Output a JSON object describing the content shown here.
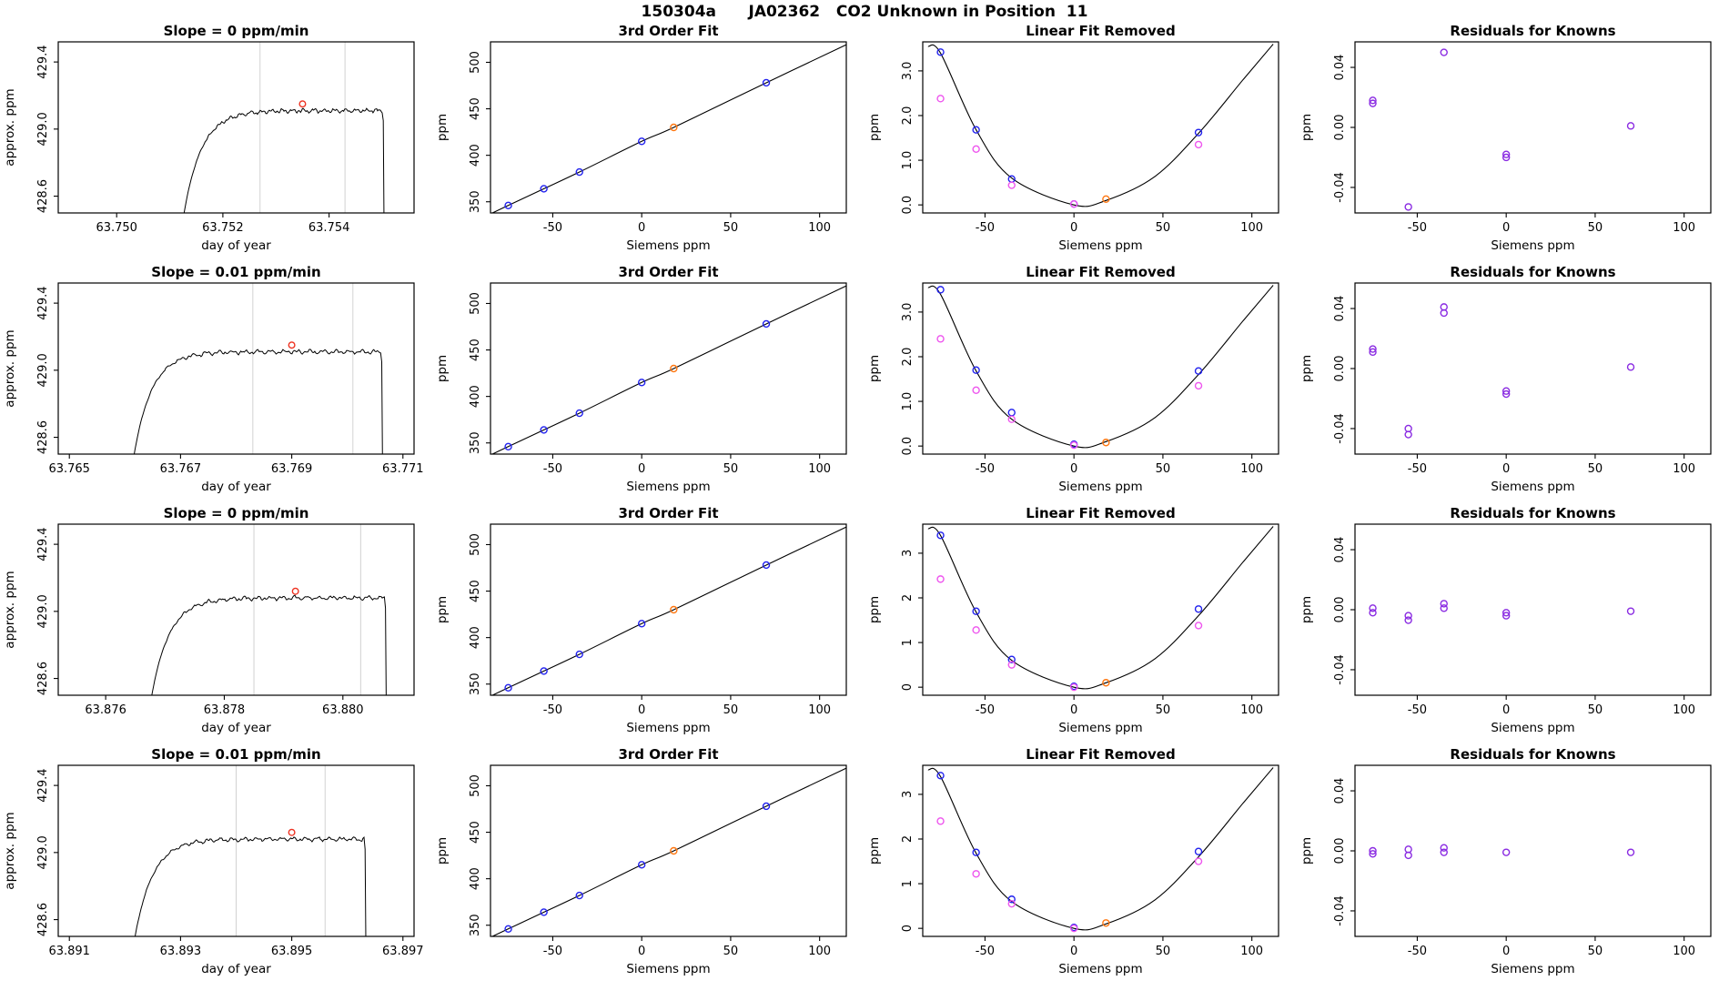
{
  "title": "150304a      JA02362   CO2 Unknown in Position  11",
  "colors": {
    "curve": "#000000",
    "blue": "#2222ee",
    "magenta": "#ee55ee",
    "purple": "#8a2be2",
    "orange": "#ff7711",
    "red_marker": "#ee3322",
    "vline": "#d2d2d2",
    "axis": "#000000"
  },
  "chart_data": {
    "type": "line",
    "layout": {
      "rows": 4,
      "cols": 4,
      "grid": "off",
      "legend": "none"
    },
    "shared": {
      "timeseries": {
        "xlabel": "day of year",
        "ylabel": "approx. ppm",
        "ylim": [
          428.5,
          429.52
        ],
        "yticks": [
          428.6,
          429.0,
          429.4
        ],
        "ytick_labels": [
          "428.6",
          "429.0",
          "429.4"
        ]
      },
      "fit": {
        "title": "3rd Order Fit",
        "xlabel": "Siemens ppm",
        "ylabel": "ppm",
        "xlim": [
          -85,
          115
        ],
        "xticks": [
          -50,
          0,
          50,
          100
        ],
        "xtick_labels": [
          "-50",
          "0",
          "50",
          "100"
        ],
        "ylim": [
          338,
          522
        ],
        "yticks": [
          350,
          400,
          450,
          500
        ],
        "ytick_labels": [
          "350",
          "400",
          "450",
          "500"
        ],
        "blue_points": [
          [
            -75,
            346
          ],
          [
            -55,
            364
          ],
          [
            -35,
            382
          ],
          [
            0,
            415
          ],
          [
            70,
            478
          ]
        ],
        "orange_point": [
          18,
          430
        ],
        "curve": [
          [
            -85,
            337
          ],
          [
            -75,
            346
          ],
          [
            -55,
            364
          ],
          [
            -35,
            382
          ],
          [
            0,
            415
          ],
          [
            18,
            430
          ],
          [
            70,
            478
          ],
          [
            115,
            519
          ]
        ]
      },
      "linres": {
        "title": "Linear Fit Removed",
        "xlabel": "Siemens ppm",
        "ylabel": "ppm",
        "xlim": [
          -85,
          115
        ],
        "xticks": [
          -50,
          0,
          50,
          100
        ],
        "xtick_labels": [
          "-50",
          "0",
          "50",
          "100"
        ],
        "ylim": [
          -0.18,
          3.65
        ],
        "curve": [
          [
            -82,
            3.55
          ],
          [
            -75,
            3.4
          ],
          [
            -55,
            1.68
          ],
          [
            -35,
            0.6
          ],
          [
            0,
            0.0
          ],
          [
            18,
            0.1
          ],
          [
            45,
            0.62
          ],
          [
            70,
            1.6
          ],
          [
            95,
            2.8
          ],
          [
            112,
            3.6
          ]
        ]
      },
      "residuals": {
        "title": "Residuals for Knowns",
        "xlabel": "Siemens ppm",
        "ylabel": "ppm",
        "xlim": [
          -85,
          115
        ],
        "xticks": [
          -50,
          0,
          50,
          100
        ],
        "xtick_labels": [
          "-50",
          "0",
          "50",
          "100"
        ],
        "ylim": [
          -0.057,
          0.057
        ],
        "yticks": [
          -0.04,
          0.0,
          0.04
        ],
        "ytick_labels": [
          "-0.04",
          "0.00",
          "0.04"
        ]
      }
    },
    "rows": [
      {
        "slope_title": "Slope =  0  ppm/min",
        "timeseries": {
          "xlim": [
            63.7489,
            63.7556
          ],
          "xticks": [
            63.75,
            63.752,
            63.754
          ],
          "xtick_labels": [
            "63.750",
            "63.752",
            "63.754"
          ],
          "rise_x": 63.7512,
          "drop_x": 63.755,
          "plateau": 429.11,
          "vlines": [
            63.7527,
            63.7543
          ],
          "marker": [
            63.7535,
            429.15
          ]
        },
        "linres": {
          "yticks": [
            0,
            1,
            2,
            3
          ],
          "ytick_labels": [
            "0.0",
            "1.0",
            "2.0",
            "3.0"
          ],
          "blue_points": [
            [
              -75,
              3.42
            ],
            [
              -55,
              1.68
            ],
            [
              -35,
              0.58
            ],
            [
              0,
              0.02
            ],
            [
              70,
              1.62
            ]
          ],
          "magenta_points": [
            [
              -75,
              2.38
            ],
            [
              -55,
              1.25
            ],
            [
              -35,
              0.44
            ],
            [
              0,
              0.02
            ],
            [
              70,
              1.35
            ]
          ],
          "orange_point": [
            18,
            0.13
          ]
        },
        "residuals": {
          "points": [
            [
              -75,
              0.018
            ],
            [
              -75,
              0.016
            ],
            [
              -35,
              0.05
            ],
            [
              -55,
              -0.053
            ],
            [
              0,
              -0.018
            ],
            [
              0,
              -0.02
            ],
            [
              70,
              0.001
            ]
          ]
        }
      },
      {
        "slope_title": "Slope =  0.01  ppm/min",
        "timeseries": {
          "xlim": [
            63.7648,
            63.7712
          ],
          "xticks": [
            63.765,
            63.767,
            63.769,
            63.771
          ],
          "xtick_labels": [
            "63.765",
            "63.767",
            "63.769",
            "63.771"
          ],
          "rise_x": 63.7661,
          "drop_x": 63.7706,
          "plateau": 429.11,
          "vlines": [
            63.7683,
            63.7701
          ],
          "marker": [
            63.769,
            429.15
          ]
        },
        "linres": {
          "yticks": [
            0,
            1,
            2,
            3
          ],
          "ytick_labels": [
            "0.0",
            "1.0",
            "2.0",
            "3.0"
          ],
          "blue_points": [
            [
              -75,
              3.5
            ],
            [
              -55,
              1.7
            ],
            [
              -35,
              0.75
            ],
            [
              0,
              0.04
            ],
            [
              70,
              1.68
            ]
          ],
          "magenta_points": [
            [
              -75,
              2.4
            ],
            [
              -55,
              1.25
            ],
            [
              -35,
              0.6
            ],
            [
              0,
              0.02
            ],
            [
              70,
              1.35
            ]
          ],
          "orange_point": [
            18,
            0.08
          ]
        },
        "residuals": {
          "points": [
            [
              -75,
              0.013
            ],
            [
              -75,
              0.011
            ],
            [
              -35,
              0.041
            ],
            [
              -35,
              0.037
            ],
            [
              -55,
              -0.04
            ],
            [
              -55,
              -0.044
            ],
            [
              0,
              -0.015
            ],
            [
              0,
              -0.017
            ],
            [
              70,
              0.001
            ]
          ]
        }
      },
      {
        "slope_title": "Slope =  0  ppm/min",
        "timeseries": {
          "xlim": [
            63.8752,
            63.8812
          ],
          "xticks": [
            63.876,
            63.878,
            63.88
          ],
          "xtick_labels": [
            "63.876",
            "63.878",
            "63.880"
          ],
          "rise_x": 63.8767,
          "drop_x": 63.8807,
          "plateau": 429.08,
          "vlines": [
            63.8785,
            63.8803
          ],
          "marker": [
            63.8792,
            429.12
          ]
        },
        "linres": {
          "yticks": [
            0,
            1,
            2,
            3
          ],
          "ytick_labels": [
            "0",
            "1",
            "2",
            "3"
          ],
          "blue_points": [
            [
              -75,
              3.4
            ],
            [
              -55,
              1.7
            ],
            [
              -35,
              0.62
            ],
            [
              0,
              0.02
            ],
            [
              70,
              1.75
            ]
          ],
          "magenta_points": [
            [
              -75,
              2.42
            ],
            [
              -55,
              1.28
            ],
            [
              -35,
              0.5
            ],
            [
              0,
              0.0
            ],
            [
              70,
              1.38
            ]
          ],
          "orange_point": [
            18,
            0.1
          ]
        },
        "residuals": {
          "points": [
            [
              -75,
              0.001
            ],
            [
              -75,
              -0.002
            ],
            [
              -55,
              -0.004
            ],
            [
              -55,
              -0.007
            ],
            [
              -35,
              0.004
            ],
            [
              -35,
              0.001
            ],
            [
              0,
              -0.002
            ],
            [
              0,
              -0.004
            ],
            [
              70,
              -0.001
            ]
          ]
        }
      },
      {
        "slope_title": "Slope =  0.01  ppm/min",
        "timeseries": {
          "xlim": [
            63.8908,
            63.8972
          ],
          "xticks": [
            63.891,
            63.893,
            63.895,
            63.897
          ],
          "xtick_labels": [
            "63.891",
            "63.893",
            "63.895",
            "63.897"
          ],
          "rise_x": 63.8921,
          "drop_x": 63.8963,
          "plateau": 429.08,
          "vlines": [
            63.894,
            63.8956
          ],
          "marker": [
            63.895,
            429.12
          ]
        },
        "linres": {
          "yticks": [
            0,
            1,
            2,
            3
          ],
          "ytick_labels": [
            "0",
            "1",
            "2",
            "3"
          ],
          "blue_points": [
            [
              -75,
              3.42
            ],
            [
              -55,
              1.7
            ],
            [
              -35,
              0.65
            ],
            [
              0,
              0.02
            ],
            [
              70,
              1.72
            ]
          ],
          "magenta_points": [
            [
              -75,
              2.4
            ],
            [
              -55,
              1.22
            ],
            [
              -35,
              0.55
            ],
            [
              0,
              0.0
            ],
            [
              70,
              1.5
            ]
          ],
          "orange_point": [
            18,
            0.12
          ]
        },
        "residuals": {
          "points": [
            [
              -75,
              0.0
            ],
            [
              -75,
              -0.002
            ],
            [
              -55,
              0.001
            ],
            [
              -55,
              -0.003
            ],
            [
              -35,
              0.002
            ],
            [
              -35,
              -0.001
            ],
            [
              0,
              -0.001
            ],
            [
              70,
              -0.001
            ]
          ]
        }
      }
    ]
  }
}
